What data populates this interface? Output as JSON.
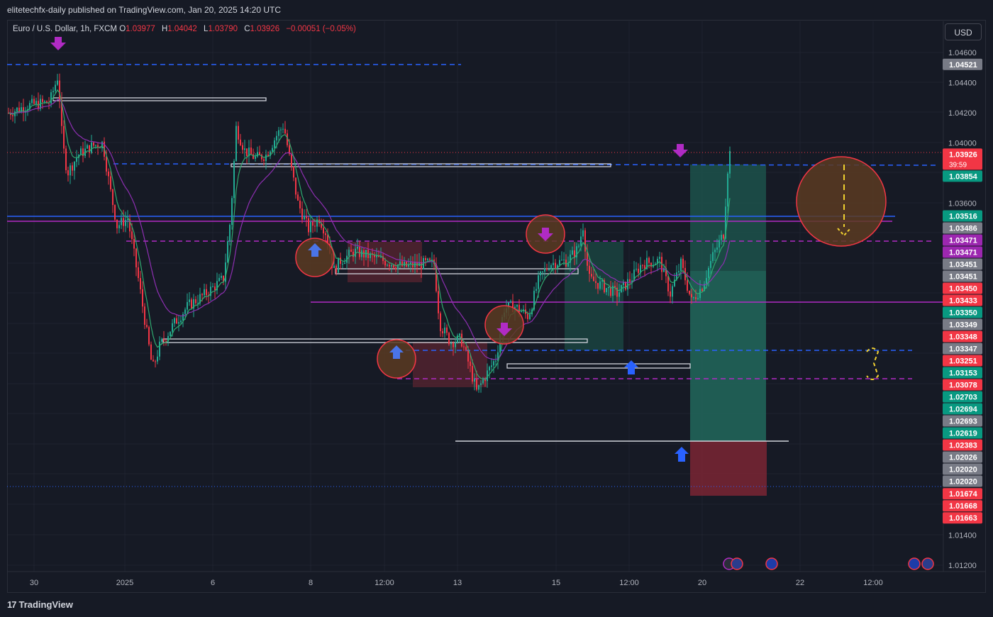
{
  "header": {
    "published_line": "elitetechfx-daily published on TradingView.com, Jan 20, 2025 14:20 UTC"
  },
  "legend": {
    "symbol": "Euro / U.S. Dollar, 1h, FXCM",
    "open_label": "O",
    "open": "1.03977",
    "high_label": "H",
    "high": "1.04042",
    "low_label": "L",
    "low": "1.03790",
    "close_label": "C",
    "close": "1.03926",
    "change": "−0.00051 (−0.05%)"
  },
  "currency_button": "USD",
  "footer": {
    "brand": "TradingView",
    "brand_mark": "17"
  },
  "colors": {
    "bull": "#22ab94",
    "bear": "#f23645",
    "blue_line": "#2962ff",
    "magenta_line": "#b02bc4",
    "background": "#161a25"
  },
  "chart_data": {
    "type": "candlestick",
    "y_axis": {
      "min": 1.011,
      "max": 1.047,
      "ticks": [
        "1.04600",
        "1.04400",
        "1.04200",
        "1.04000",
        "1.03600",
        "1.01400",
        "1.01200"
      ]
    },
    "x_axis": {
      "ticks": [
        "30",
        "2025",
        "6",
        "8",
        "12:00",
        "13",
        "15",
        "12:00",
        "20",
        "22",
        "12:00"
      ]
    },
    "price_tags": [
      {
        "label": "1.04521",
        "value": 1.04521,
        "color": "#787b86"
      },
      {
        "label": "1.03926",
        "value": 1.03926,
        "color": "#f23645",
        "sub": "39:59"
      },
      {
        "label": "1.03854",
        "value": 1.03854,
        "color": "#089981"
      },
      {
        "label": "1.03516",
        "value": 1.03516,
        "color": "#089981"
      },
      {
        "label": "1.03486",
        "value": 1.03486,
        "color": "#787b86"
      },
      {
        "label": "1.03471",
        "value": 1.03471,
        "color": "#9c27b0"
      },
      {
        "label": "1.03471",
        "value": 1.03471,
        "color": "#9c27b0"
      },
      {
        "label": "1.03451",
        "value": 1.03451,
        "color": "#787b86"
      },
      {
        "label": "1.03451",
        "value": 1.03451,
        "color": "#787b86"
      },
      {
        "label": "1.03450",
        "value": 1.0345,
        "color": "#f23645"
      },
      {
        "label": "1.03433",
        "value": 1.03433,
        "color": "#f23645"
      },
      {
        "label": "1.03350",
        "value": 1.0335,
        "color": "#089981"
      },
      {
        "label": "1.03349",
        "value": 1.03349,
        "color": "#787b86"
      },
      {
        "label": "1.03348",
        "value": 1.03348,
        "color": "#f23645"
      },
      {
        "label": "1.03347",
        "value": 1.03347,
        "color": "#787b86"
      },
      {
        "label": "1.03251",
        "value": 1.03251,
        "color": "#f23645"
      },
      {
        "label": "1.03153",
        "value": 1.03153,
        "color": "#089981"
      },
      {
        "label": "1.03078",
        "value": 1.03078,
        "color": "#f23645"
      },
      {
        "label": "1.02703",
        "value": 1.02703,
        "color": "#089981"
      },
      {
        "label": "1.02694",
        "value": 1.02694,
        "color": "#089981"
      },
      {
        "label": "1.02693",
        "value": 1.02693,
        "color": "#787b86"
      },
      {
        "label": "1.02619",
        "value": 1.02619,
        "color": "#089981"
      },
      {
        "label": "1.02383",
        "value": 1.02383,
        "color": "#f23645"
      },
      {
        "label": "1.02026",
        "value": 1.02026,
        "color": "#787b86"
      },
      {
        "label": "1.02020",
        "value": 1.0202,
        "color": "#787b86"
      },
      {
        "label": "1.02020",
        "value": 1.0202,
        "color": "#787b86"
      },
      {
        "label": "1.01674",
        "value": 1.01674,
        "color": "#f23645"
      },
      {
        "label": "1.01668",
        "value": 1.01668,
        "color": "#f23645"
      },
      {
        "label": "1.01663",
        "value": 1.01663,
        "color": "#f23645"
      }
    ]
  }
}
